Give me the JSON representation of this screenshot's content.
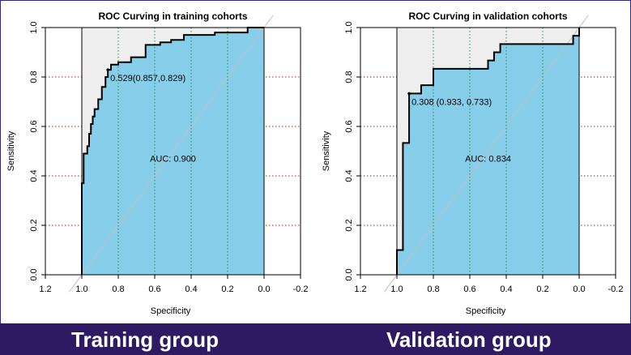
{
  "chart_data": [
    {
      "type": "line",
      "title": "ROC Curving in training cohorts",
      "xlabel": "Specificity",
      "ylabel": "Sensitivity",
      "xlim": [
        1.2,
        -0.2
      ],
      "ylim": [
        0,
        1
      ],
      "x_ticks": [
        "1.2",
        "1.0",
        "0.8",
        "0.6",
        "0.4",
        "0.2",
        "0.0",
        "-0.2"
      ],
      "y_ticks": [
        "0.0",
        "0.2",
        "0.4",
        "0.6",
        "0.8",
        "1.0"
      ],
      "auc_label": "AUC: 0.900",
      "auc_pos": [
        0.5,
        0.47
      ],
      "threshold_label": "0.529(0.857,0.829)",
      "threshold_point": [
        0.857,
        0.829
      ],
      "fill_color": "#87ceeb",
      "upper_fill": "#eeeeee",
      "curve": [
        [
          1.0,
          0.0
        ],
        [
          1.0,
          0.37
        ],
        [
          0.99,
          0.37
        ],
        [
          0.99,
          0.49
        ],
        [
          0.97,
          0.49
        ],
        [
          0.97,
          0.52
        ],
        [
          0.96,
          0.52
        ],
        [
          0.96,
          0.57
        ],
        [
          0.95,
          0.57
        ],
        [
          0.95,
          0.61
        ],
        [
          0.94,
          0.61
        ],
        [
          0.94,
          0.64
        ],
        [
          0.93,
          0.64
        ],
        [
          0.93,
          0.67
        ],
        [
          0.91,
          0.67
        ],
        [
          0.91,
          0.71
        ],
        [
          0.89,
          0.71
        ],
        [
          0.89,
          0.76
        ],
        [
          0.87,
          0.76
        ],
        [
          0.87,
          0.8
        ],
        [
          0.857,
          0.8
        ],
        [
          0.857,
          0.829
        ],
        [
          0.84,
          0.829
        ],
        [
          0.84,
          0.85
        ],
        [
          0.8,
          0.85
        ],
        [
          0.8,
          0.86
        ],
        [
          0.73,
          0.86
        ],
        [
          0.73,
          0.88
        ],
        [
          0.65,
          0.88
        ],
        [
          0.65,
          0.93
        ],
        [
          0.57,
          0.93
        ],
        [
          0.57,
          0.94
        ],
        [
          0.51,
          0.94
        ],
        [
          0.51,
          0.95
        ],
        [
          0.44,
          0.95
        ],
        [
          0.44,
          0.97
        ],
        [
          0.27,
          0.97
        ],
        [
          0.27,
          0.98
        ],
        [
          0.09,
          0.98
        ],
        [
          0.09,
          1.0
        ],
        [
          0.0,
          1.0
        ]
      ]
    },
    {
      "type": "line",
      "title": "ROC Curving in validation cohorts",
      "xlabel": "Specificity",
      "ylabel": "Sensitivity",
      "xlim": [
        1.2,
        -0.2
      ],
      "ylim": [
        0,
        1
      ],
      "x_ticks": [
        "1.2",
        "1.0",
        "0.8",
        "0.6",
        "0.4",
        "0.2",
        "0.0",
        "-0.2"
      ],
      "y_ticks": [
        "0.0",
        "0.2",
        "0.4",
        "0.6",
        "0.8",
        "1.0"
      ],
      "auc_label": "AUC: 0.834",
      "auc_pos": [
        0.5,
        0.47
      ],
      "threshold_label": "0.308 (0.933, 0.733)",
      "threshold_point": [
        0.933,
        0.733
      ],
      "fill_color": "#87ceeb",
      "upper_fill": "#eeeeee",
      "curve": [
        [
          1.0,
          0.0
        ],
        [
          1.0,
          0.1
        ],
        [
          0.967,
          0.1
        ],
        [
          0.967,
          0.533
        ],
        [
          0.933,
          0.533
        ],
        [
          0.933,
          0.733
        ],
        [
          0.867,
          0.733
        ],
        [
          0.867,
          0.767
        ],
        [
          0.8,
          0.767
        ],
        [
          0.8,
          0.833
        ],
        [
          0.5,
          0.833
        ],
        [
          0.5,
          0.867
        ],
        [
          0.467,
          0.867
        ],
        [
          0.467,
          0.9
        ],
        [
          0.433,
          0.9
        ],
        [
          0.433,
          0.933
        ],
        [
          0.033,
          0.933
        ],
        [
          0.033,
          0.967
        ],
        [
          0.0,
          0.967
        ],
        [
          0.0,
          1.0
        ]
      ]
    }
  ],
  "footer": {
    "left_label": "Training group",
    "right_label": "Validation group"
  }
}
